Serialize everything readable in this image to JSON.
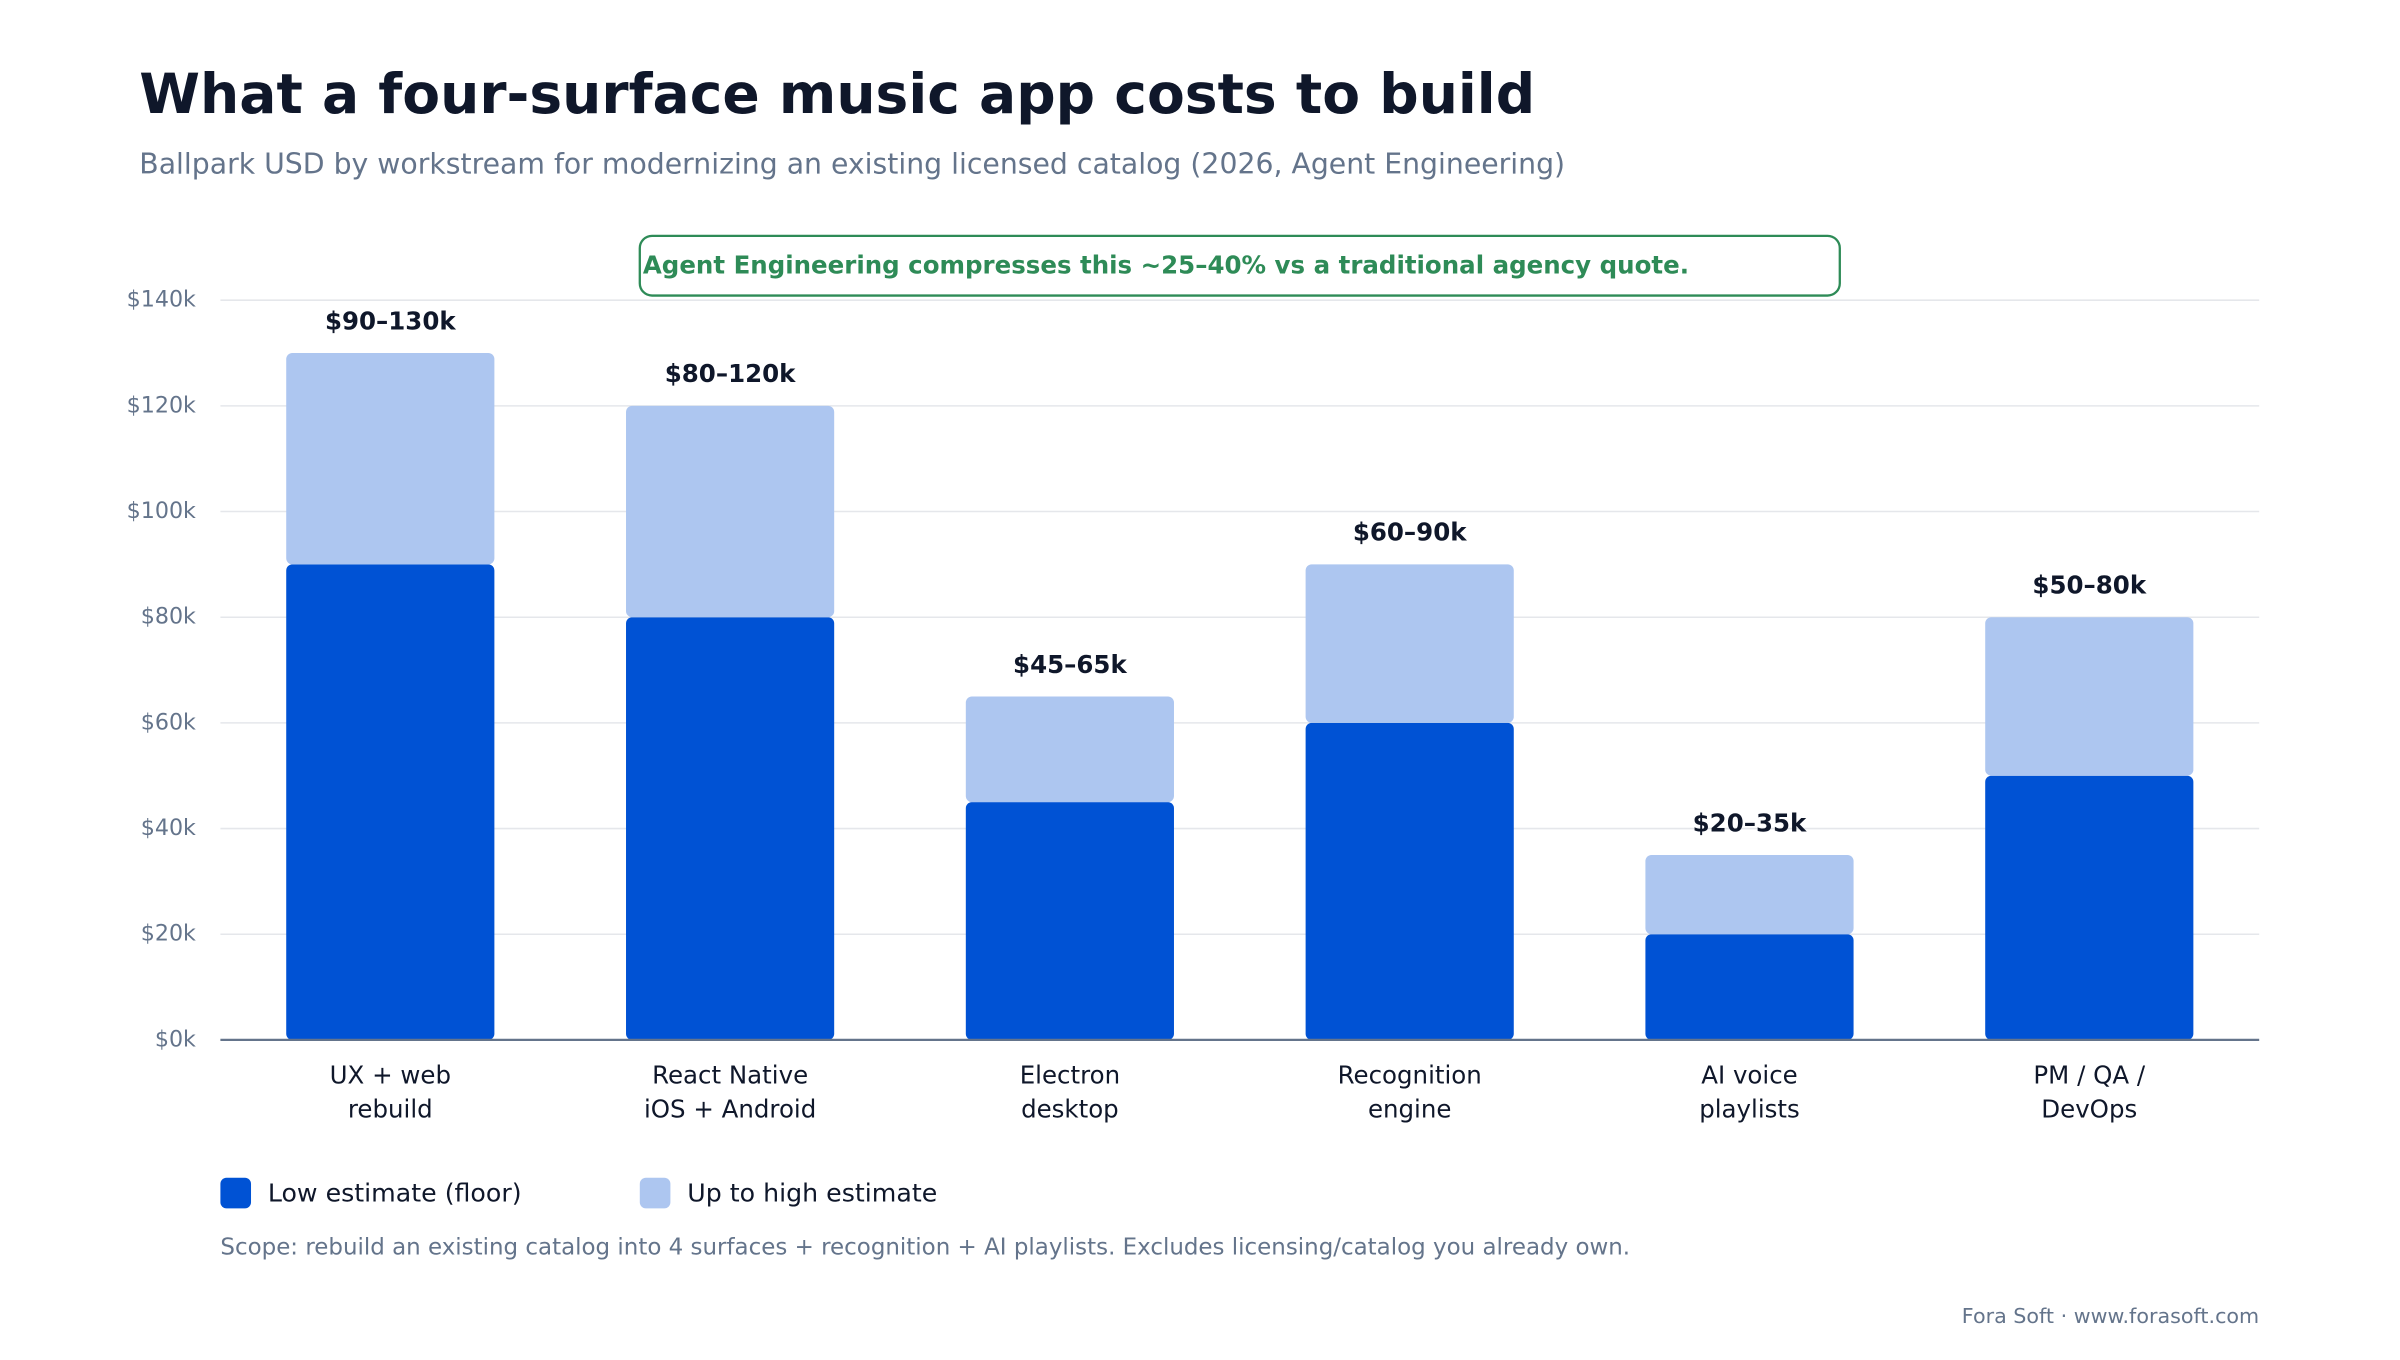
{
  "chart_data": {
    "type": "stacked_bar",
    "title": "What a four-surface music app costs to build",
    "subtitle": "Ballpark USD by workstream for modernizing an existing licensed catalog (2026, Agent Engineering)",
    "annotation": "Agent Engineering compresses this ~25–40% vs a traditional agency quote.",
    "categories": [
      [
        "UX + web",
        "rebuild"
      ],
      [
        "React Native",
        "iOS + Android"
      ],
      [
        "Electron",
        "desktop"
      ],
      [
        "Recognition",
        "engine"
      ],
      [
        "AI voice",
        "playlists"
      ],
      [
        "PM / QA /",
        "DevOps"
      ]
    ],
    "series": [
      {
        "name": "Low estimate (floor)",
        "color": "#0052d4",
        "values": [
          90,
          80,
          45,
          60,
          20,
          50
        ]
      },
      {
        "name": "Up to high estimate",
        "color": "#adc6f0",
        "values": [
          40,
          40,
          20,
          30,
          15,
          30
        ]
      }
    ],
    "value_labels": [
      "$90–130k",
      "$80–120k",
      "$45–65k",
      "$60–90k",
      "$20–35k",
      "$50–80k"
    ],
    "ylim": [
      0,
      140
    ],
    "yticks": [
      {
        "value": 0,
        "label": "$0k"
      },
      {
        "value": 20,
        "label": "$20k"
      },
      {
        "value": 40,
        "label": "$40k"
      },
      {
        "value": 60,
        "label": "$60k"
      },
      {
        "value": 80,
        "label": "$80k"
      },
      {
        "value": 100,
        "label": "$100k"
      },
      {
        "value": 120,
        "label": "$120k"
      },
      {
        "value": 140,
        "label": "$140k"
      }
    ],
    "grid": true,
    "footnote": "Scope: rebuild an existing catalog into 4 surfaces + recognition + AI playlists. Excludes licensing/catalog you already own.",
    "source": "Fora Soft · www.forasoft.com"
  }
}
